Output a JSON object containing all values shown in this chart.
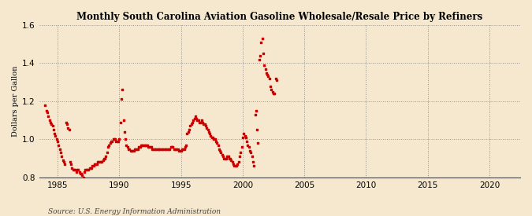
{
  "title": "Monthly South Carolina Aviation Gasoline Wholesale/Resale Price by Refiners",
  "ylabel": "Dollars per Gallon",
  "source": "Source: U.S. Energy Information Administration",
  "bg_color": "#f5e8ce",
  "marker_color": "#cc0000",
  "xlim": [
    1983.5,
    2022.5
  ],
  "ylim": [
    0.8,
    1.6
  ],
  "yticks": [
    0.8,
    1.0,
    1.2,
    1.4,
    1.6
  ],
  "xticks": [
    1985,
    1990,
    1995,
    2000,
    2005,
    2010,
    2015,
    2020
  ],
  "data": [
    [
      1984.0,
      1.18
    ],
    [
      1984.08,
      1.15
    ],
    [
      1984.17,
      1.14
    ],
    [
      1984.25,
      1.12
    ],
    [
      1984.33,
      1.1
    ],
    [
      1984.42,
      1.09
    ],
    [
      1984.5,
      1.08
    ],
    [
      1984.58,
      1.07
    ],
    [
      1984.67,
      1.05
    ],
    [
      1984.75,
      1.03
    ],
    [
      1984.83,
      1.02
    ],
    [
      1984.92,
      1.0
    ],
    [
      1985.0,
      0.99
    ],
    [
      1985.08,
      0.97
    ],
    [
      1985.17,
      0.95
    ],
    [
      1985.25,
      0.93
    ],
    [
      1985.33,
      0.91
    ],
    [
      1985.42,
      0.89
    ],
    [
      1985.5,
      0.88
    ],
    [
      1985.58,
      0.87
    ],
    [
      1985.67,
      1.09
    ],
    [
      1985.75,
      1.08
    ],
    [
      1985.83,
      1.06
    ],
    [
      1985.92,
      1.05
    ],
    [
      1986.0,
      0.88
    ],
    [
      1986.08,
      0.87
    ],
    [
      1986.17,
      0.85
    ],
    [
      1986.25,
      0.84
    ],
    [
      1986.33,
      0.84
    ],
    [
      1986.42,
      0.84
    ],
    [
      1986.5,
      0.83
    ],
    [
      1986.58,
      0.84
    ],
    [
      1986.67,
      0.84
    ],
    [
      1986.75,
      0.83
    ],
    [
      1986.83,
      0.82
    ],
    [
      1986.92,
      0.82
    ],
    [
      1987.0,
      0.81
    ],
    [
      1987.08,
      0.8
    ],
    [
      1987.17,
      0.83
    ],
    [
      1987.25,
      0.84
    ],
    [
      1987.33,
      0.84
    ],
    [
      1987.42,
      0.84
    ],
    [
      1987.5,
      0.84
    ],
    [
      1987.58,
      0.85
    ],
    [
      1987.67,
      0.85
    ],
    [
      1987.75,
      0.85
    ],
    [
      1987.83,
      0.86
    ],
    [
      1987.92,
      0.86
    ],
    [
      1988.0,
      0.87
    ],
    [
      1988.08,
      0.87
    ],
    [
      1988.17,
      0.87
    ],
    [
      1988.25,
      0.88
    ],
    [
      1988.33,
      0.88
    ],
    [
      1988.42,
      0.88
    ],
    [
      1988.5,
      0.88
    ],
    [
      1988.58,
      0.88
    ],
    [
      1988.67,
      0.89
    ],
    [
      1988.75,
      0.9
    ],
    [
      1988.83,
      0.9
    ],
    [
      1988.92,
      0.91
    ],
    [
      1989.0,
      0.93
    ],
    [
      1989.08,
      0.96
    ],
    [
      1989.17,
      0.97
    ],
    [
      1989.25,
      0.98
    ],
    [
      1989.33,
      0.99
    ],
    [
      1989.42,
      0.99
    ],
    [
      1989.5,
      1.0
    ],
    [
      1989.58,
      1.0
    ],
    [
      1989.67,
      1.0
    ],
    [
      1989.75,
      0.99
    ],
    [
      1989.83,
      0.99
    ],
    [
      1989.92,
      0.99
    ],
    [
      1990.0,
      1.0
    ],
    [
      1990.08,
      1.09
    ],
    [
      1990.17,
      1.21
    ],
    [
      1990.25,
      1.26
    ],
    [
      1990.33,
      1.1
    ],
    [
      1990.42,
      1.04
    ],
    [
      1990.5,
      1.0
    ],
    [
      1990.58,
      0.97
    ],
    [
      1990.67,
      0.96
    ],
    [
      1990.75,
      0.95
    ],
    [
      1990.83,
      0.95
    ],
    [
      1990.92,
      0.94
    ],
    [
      1991.0,
      0.94
    ],
    [
      1991.08,
      0.94
    ],
    [
      1991.17,
      0.94
    ],
    [
      1991.25,
      0.95
    ],
    [
      1991.33,
      0.95
    ],
    [
      1991.42,
      0.95
    ],
    [
      1991.5,
      0.95
    ],
    [
      1991.58,
      0.96
    ],
    [
      1991.67,
      0.96
    ],
    [
      1991.75,
      0.97
    ],
    [
      1991.83,
      0.97
    ],
    [
      1991.92,
      0.97
    ],
    [
      1992.0,
      0.97
    ],
    [
      1992.08,
      0.97
    ],
    [
      1992.17,
      0.97
    ],
    [
      1992.25,
      0.97
    ],
    [
      1992.33,
      0.96
    ],
    [
      1992.42,
      0.96
    ],
    [
      1992.5,
      0.96
    ],
    [
      1992.58,
      0.96
    ],
    [
      1992.67,
      0.95
    ],
    [
      1992.75,
      0.95
    ],
    [
      1992.83,
      0.95
    ],
    [
      1992.92,
      0.95
    ],
    [
      1993.0,
      0.95
    ],
    [
      1993.08,
      0.95
    ],
    [
      1993.17,
      0.95
    ],
    [
      1993.25,
      0.95
    ],
    [
      1993.33,
      0.95
    ],
    [
      1993.42,
      0.95
    ],
    [
      1993.5,
      0.95
    ],
    [
      1993.58,
      0.95
    ],
    [
      1993.67,
      0.95
    ],
    [
      1993.75,
      0.95
    ],
    [
      1993.83,
      0.95
    ],
    [
      1993.92,
      0.95
    ],
    [
      1994.0,
      0.95
    ],
    [
      1994.08,
      0.95
    ],
    [
      1994.17,
      0.96
    ],
    [
      1994.25,
      0.96
    ],
    [
      1994.33,
      0.96
    ],
    [
      1994.42,
      0.95
    ],
    [
      1994.5,
      0.95
    ],
    [
      1994.58,
      0.95
    ],
    [
      1994.67,
      0.95
    ],
    [
      1994.75,
      0.95
    ],
    [
      1994.83,
      0.94
    ],
    [
      1994.92,
      0.94
    ],
    [
      1995.0,
      0.94
    ],
    [
      1995.08,
      0.95
    ],
    [
      1995.17,
      0.95
    ],
    [
      1995.25,
      0.95
    ],
    [
      1995.33,
      0.96
    ],
    [
      1995.42,
      0.97
    ],
    [
      1995.5,
      1.03
    ],
    [
      1995.58,
      1.04
    ],
    [
      1995.67,
      1.05
    ],
    [
      1995.75,
      1.07
    ],
    [
      1995.83,
      1.08
    ],
    [
      1995.92,
      1.09
    ],
    [
      1996.0,
      1.1
    ],
    [
      1996.08,
      1.11
    ],
    [
      1996.17,
      1.12
    ],
    [
      1996.25,
      1.11
    ],
    [
      1996.33,
      1.1
    ],
    [
      1996.42,
      1.1
    ],
    [
      1996.5,
      1.09
    ],
    [
      1996.58,
      1.09
    ],
    [
      1996.67,
      1.1
    ],
    [
      1996.75,
      1.09
    ],
    [
      1996.83,
      1.08
    ],
    [
      1996.92,
      1.08
    ],
    [
      1997.0,
      1.07
    ],
    [
      1997.08,
      1.06
    ],
    [
      1997.17,
      1.05
    ],
    [
      1997.25,
      1.04
    ],
    [
      1997.33,
      1.03
    ],
    [
      1997.42,
      1.02
    ],
    [
      1997.5,
      1.01
    ],
    [
      1997.58,
      1.01
    ],
    [
      1997.67,
      1.0
    ],
    [
      1997.75,
      1.0
    ],
    [
      1997.83,
      0.99
    ],
    [
      1997.92,
      0.98
    ],
    [
      1998.0,
      0.97
    ],
    [
      1998.08,
      0.95
    ],
    [
      1998.17,
      0.94
    ],
    [
      1998.25,
      0.93
    ],
    [
      1998.33,
      0.92
    ],
    [
      1998.42,
      0.91
    ],
    [
      1998.5,
      0.9
    ],
    [
      1998.58,
      0.9
    ],
    [
      1998.67,
      0.9
    ],
    [
      1998.75,
      0.91
    ],
    [
      1998.83,
      0.91
    ],
    [
      1998.92,
      0.9
    ],
    [
      1999.0,
      0.9
    ],
    [
      1999.08,
      0.89
    ],
    [
      1999.17,
      0.88
    ],
    [
      1999.25,
      0.87
    ],
    [
      1999.33,
      0.86
    ],
    [
      1999.42,
      0.86
    ],
    [
      1999.5,
      0.86
    ],
    [
      1999.58,
      0.87
    ],
    [
      1999.67,
      0.88
    ],
    [
      1999.75,
      0.91
    ],
    [
      1999.83,
      0.93
    ],
    [
      1999.92,
      0.96
    ],
    [
      2000.0,
      1.01
    ],
    [
      2000.08,
      1.03
    ],
    [
      2000.17,
      1.02
    ],
    [
      2000.25,
      1.01
    ],
    [
      2000.33,
      0.99
    ],
    [
      2000.42,
      0.97
    ],
    [
      2000.5,
      0.96
    ],
    [
      2000.58,
      0.94
    ],
    [
      2000.67,
      0.93
    ],
    [
      2000.75,
      0.91
    ],
    [
      2000.83,
      0.88
    ],
    [
      2000.92,
      0.86
    ],
    [
      2001.0,
      1.13
    ],
    [
      2001.08,
      1.15
    ],
    [
      2001.17,
      1.05
    ],
    [
      2001.25,
      0.98
    ],
    [
      2001.33,
      1.42
    ],
    [
      2001.42,
      1.44
    ],
    [
      2001.5,
      1.51
    ],
    [
      2001.58,
      1.53
    ],
    [
      2001.67,
      1.45
    ],
    [
      2001.75,
      1.39
    ],
    [
      2001.83,
      1.37
    ],
    [
      2001.92,
      1.35
    ],
    [
      2002.0,
      1.34
    ],
    [
      2002.08,
      1.33
    ],
    [
      2002.17,
      1.32
    ],
    [
      2002.25,
      1.28
    ],
    [
      2002.33,
      1.26
    ],
    [
      2002.42,
      1.25
    ],
    [
      2002.5,
      1.24
    ],
    [
      2002.58,
      1.24
    ],
    [
      2002.67,
      1.32
    ],
    [
      2002.75,
      1.31
    ]
  ]
}
